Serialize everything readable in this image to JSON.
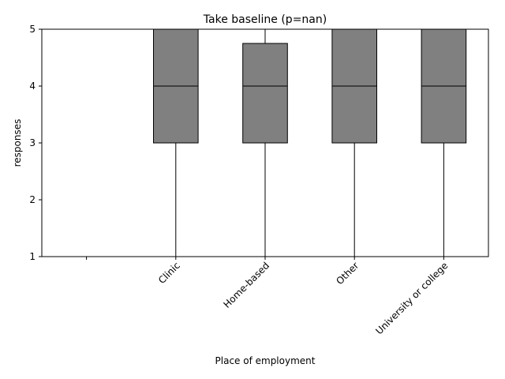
{
  "chart_data": {
    "type": "box",
    "title": "Take baseline (p=nan)",
    "xlabel": "Place of employment",
    "ylabel": "responses",
    "ylim": [
      1,
      5
    ],
    "yticks": [
      1,
      2,
      3,
      4,
      5
    ],
    "categories": [
      "",
      "Clinic",
      "Home-based",
      "Other",
      "University or college"
    ],
    "boxes": [
      null,
      {
        "whislo": 1,
        "q1": 3,
        "med": 4,
        "q3": 5,
        "whishi": 5
      },
      {
        "whislo": 1,
        "q1": 3,
        "med": 4,
        "q3": 4.75,
        "whishi": 5
      },
      {
        "whislo": 1,
        "q1": 3,
        "med": 4,
        "q3": 5,
        "whishi": 5
      },
      {
        "whislo": 1,
        "q1": 3,
        "med": 4,
        "q3": 5,
        "whishi": 5
      }
    ],
    "box_color": "#808080",
    "edge_color": "#000000",
    "grid": false,
    "legend": "none"
  }
}
